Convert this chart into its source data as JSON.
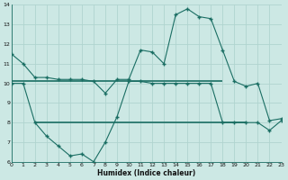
{
  "xlabel": "Humidex (Indice chaleur)",
  "bg_color": "#cce8e4",
  "grid_color": "#b0d4cf",
  "line_color": "#1a6e63",
  "x": [
    0,
    1,
    2,
    3,
    4,
    5,
    6,
    7,
    8,
    9,
    10,
    11,
    12,
    13,
    14,
    15,
    16,
    17,
    18,
    19,
    20,
    21,
    22,
    23
  ],
  "line1": [
    11.5,
    11.0,
    10.3,
    10.3,
    10.2,
    10.2,
    10.2,
    10.1,
    9.5,
    10.2,
    10.2,
    11.7,
    11.6,
    11.0,
    13.5,
    13.8,
    13.4,
    13.3,
    11.7,
    10.1,
    9.85,
    10.0,
    8.1,
    8.2
  ],
  "line2": [
    10.0,
    10.0,
    8.0,
    7.3,
    6.8,
    6.3,
    6.4,
    6.0,
    7.0,
    8.3,
    10.1,
    10.1,
    10.0,
    10.0,
    10.0,
    10.0,
    10.0,
    10.0,
    8.0,
    8.0,
    8.0,
    8.0,
    7.6,
    8.1
  ],
  "hline1_y": 10.1,
  "hline1_x0": 0,
  "hline1_x1": 18,
  "hline2_y": 8.0,
  "hline2_x0": 2,
  "hline2_x1": 20,
  "ylim": [
    6,
    14
  ],
  "xlim": [
    0,
    23
  ],
  "yticks": [
    6,
    7,
    8,
    9,
    10,
    11,
    12,
    13,
    14
  ],
  "xticks": [
    0,
    1,
    2,
    3,
    4,
    5,
    6,
    7,
    8,
    9,
    10,
    11,
    12,
    13,
    14,
    15,
    16,
    17,
    18,
    19,
    20,
    21,
    22,
    23
  ]
}
